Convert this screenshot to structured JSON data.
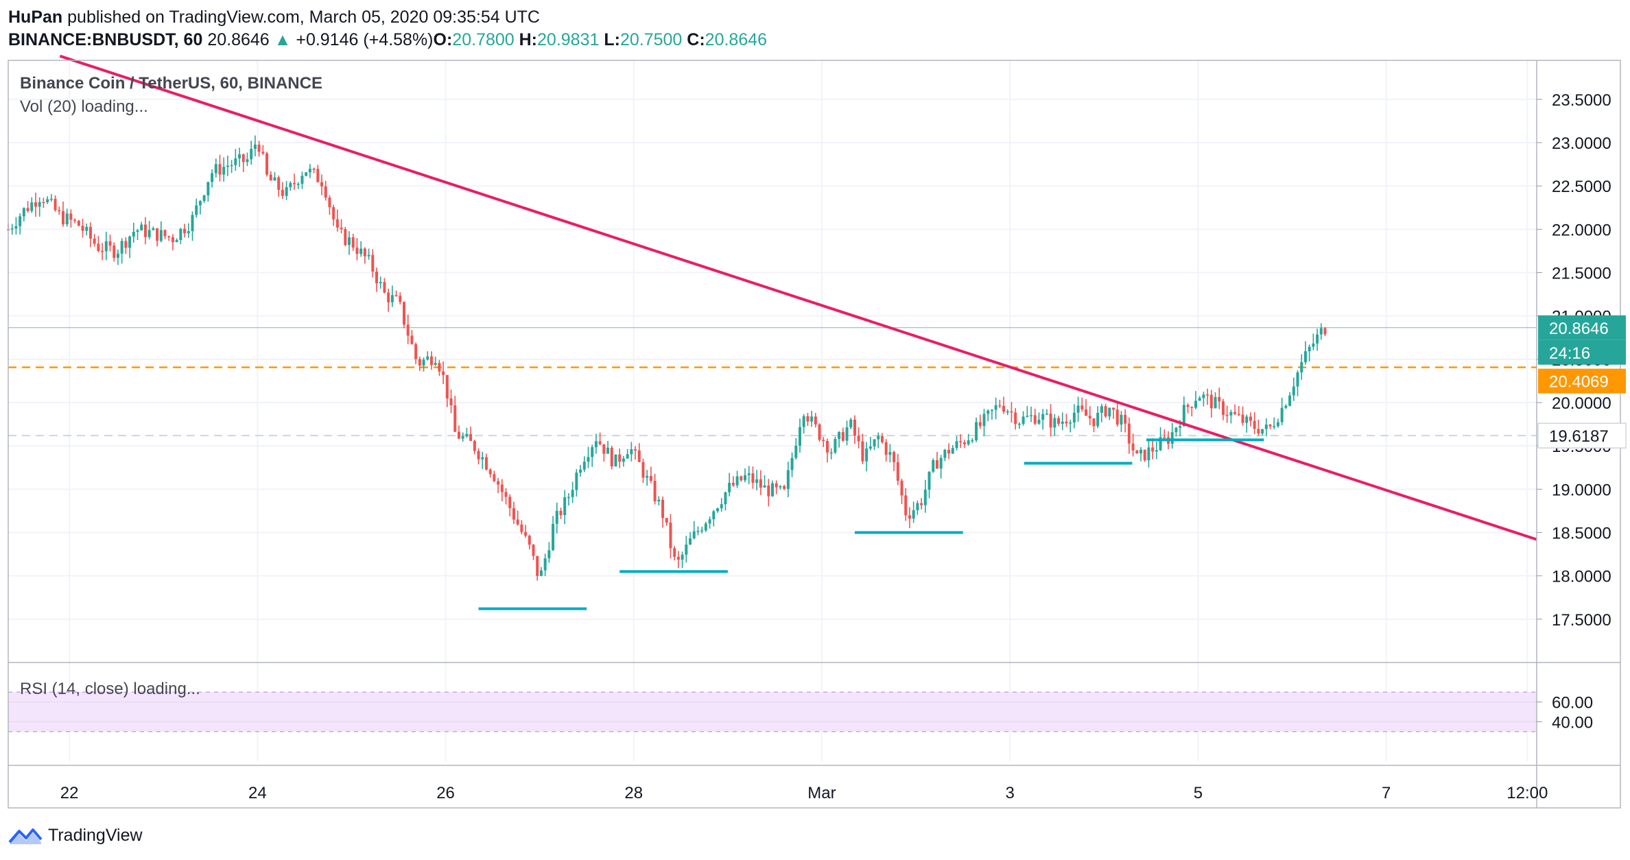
{
  "header": {
    "author": "HuPan",
    "published": "published on TradingView.com, March 05, 2020 09:35:54 UTC",
    "symbol": "BINANCE:BNBUSDT, 60",
    "last": "20.8646",
    "arrow": "▲",
    "change": "+0.9146 (+4.58%)",
    "o_label": "O:",
    "o_value": "20.7800",
    "h_label": "H:",
    "h_value": "20.9831",
    "l_label": "L:",
    "l_value": "20.7500",
    "c_label": "C:",
    "c_value": "20.8646"
  },
  "legend": {
    "title": "Binance Coin / TetherUS, 60, BINANCE",
    "volume": "Vol (20) loading...",
    "rsi": "RSI (14, close) loading..."
  },
  "footer": {
    "brand": "TradingView",
    "logo_icon": "tradingview-logo-icon"
  },
  "colors": {
    "up": "#26a69a",
    "down": "#ef5350",
    "trendline": "#e91e63",
    "resistance": "#ff9800",
    "support": "#00acc1",
    "rsi_band": "#f3e5fb"
  },
  "chart_data": {
    "type": "candlestick",
    "title": "Binance Coin / TetherUS, 60, BINANCE",
    "x_ticks": [
      "22",
      "24",
      "26",
      "28",
      "Mar",
      "3",
      "5",
      "7",
      "12:00"
    ],
    "y_ticks": [
      "17.5000",
      "18.0000",
      "18.5000",
      "19.0000",
      "19.5000",
      "20.0000",
      "20.5000",
      "21.0000",
      "21.5000",
      "22.0000",
      "22.5000",
      "23.0000",
      "23.5000"
    ],
    "ylim": [
      17.0,
      23.95
    ],
    "x_range_days": [
      21.35,
      37.6
    ],
    "price_labels": {
      "last": {
        "value": 20.8646,
        "text": "20.8646",
        "countdown": "24:16"
      },
      "resistance": {
        "value": 20.4069,
        "text": "20.4069"
      },
      "support": {
        "value": 19.6187,
        "text": "19.6187"
      }
    },
    "trendline": {
      "from": {
        "day": 21.9,
        "price": 24.0
      },
      "to": {
        "day": 37.6,
        "price": 18.42
      }
    },
    "support_segments": [
      {
        "day_from": 26.35,
        "day_to": 27.5,
        "price": 17.62
      },
      {
        "day_from": 27.85,
        "day_to": 29.0,
        "price": 18.05
      },
      {
        "day_from": 30.35,
        "day_to": 31.5,
        "price": 18.5
      },
      {
        "day_from": 32.15,
        "day_to": 33.3,
        "price": 19.3
      },
      {
        "day_from": 33.45,
        "day_to": 34.7,
        "price": 19.57
      }
    ],
    "rsi": {
      "levels": [
        40.0,
        60.0
      ],
      "tick_labels": [
        "60.00",
        "40.00"
      ],
      "band": [
        30,
        70
      ]
    },
    "price_anchors": [
      [
        21.35,
        22.0
      ],
      [
        21.5,
        22.2
      ],
      [
        21.7,
        22.4
      ],
      [
        21.9,
        22.15
      ],
      [
        22.1,
        22.05
      ],
      [
        22.3,
        21.8
      ],
      [
        22.5,
        21.75
      ],
      [
        22.7,
        22.0
      ],
      [
        22.9,
        21.95
      ],
      [
        23.1,
        21.9
      ],
      [
        23.3,
        22.1
      ],
      [
        23.5,
        22.65
      ],
      [
        23.7,
        22.75
      ],
      [
        23.9,
        22.8
      ],
      [
        24.0,
        23.05
      ],
      [
        24.1,
        22.6
      ],
      [
        24.3,
        22.4
      ],
      [
        24.5,
        22.7
      ],
      [
        24.7,
        22.55
      ],
      [
        24.85,
        21.95
      ],
      [
        25.0,
        21.85
      ],
      [
        25.2,
        21.6
      ],
      [
        25.35,
        21.25
      ],
      [
        25.5,
        21.15
      ],
      [
        25.7,
        20.45
      ],
      [
        25.9,
        20.55
      ],
      [
        26.0,
        20.2
      ],
      [
        26.1,
        19.65
      ],
      [
        26.3,
        19.5
      ],
      [
        26.5,
        19.2
      ],
      [
        26.7,
        18.75
      ],
      [
        26.9,
        18.3
      ],
      [
        27.0,
        17.95
      ],
      [
        27.15,
        18.6
      ],
      [
        27.3,
        18.9
      ],
      [
        27.45,
        19.35
      ],
      [
        27.6,
        19.6
      ],
      [
        27.8,
        19.3
      ],
      [
        27.95,
        19.5
      ],
      [
        28.1,
        19.2
      ],
      [
        28.3,
        18.75
      ],
      [
        28.45,
        18.1
      ],
      [
        28.6,
        18.4
      ],
      [
        28.8,
        18.7
      ],
      [
        29.0,
        19.0
      ],
      [
        29.2,
        19.15
      ],
      [
        29.4,
        19.0
      ],
      [
        29.6,
        18.95
      ],
      [
        29.8,
        19.95
      ],
      [
        29.9,
        19.75
      ],
      [
        30.1,
        19.45
      ],
      [
        30.3,
        19.75
      ],
      [
        30.45,
        19.35
      ],
      [
        30.6,
        19.6
      ],
      [
        30.75,
        19.35
      ],
      [
        30.9,
        18.7
      ],
      [
        31.05,
        18.85
      ],
      [
        31.2,
        19.3
      ],
      [
        31.35,
        19.45
      ],
      [
        31.5,
        19.55
      ],
      [
        31.7,
        19.75
      ],
      [
        31.9,
        20.0
      ],
      [
        32.1,
        19.8
      ],
      [
        32.3,
        19.85
      ],
      [
        32.5,
        19.75
      ],
      [
        32.7,
        19.9
      ],
      [
        32.9,
        19.8
      ],
      [
        33.05,
        19.95
      ],
      [
        33.2,
        19.75
      ],
      [
        33.35,
        19.35
      ],
      [
        33.5,
        19.45
      ],
      [
        33.7,
        19.6
      ],
      [
        33.85,
        19.9
      ],
      [
        34.0,
        20.1
      ],
      [
        34.15,
        20.0
      ],
      [
        34.3,
        19.9
      ],
      [
        34.45,
        19.8
      ],
      [
        34.6,
        19.72
      ],
      [
        34.75,
        19.68
      ],
      [
        34.9,
        19.95
      ],
      [
        35.0,
        20.2
      ],
      [
        35.1,
        20.45
      ],
      [
        35.2,
        20.65
      ],
      [
        35.3,
        20.8
      ],
      [
        35.35,
        20.8646
      ]
    ]
  }
}
